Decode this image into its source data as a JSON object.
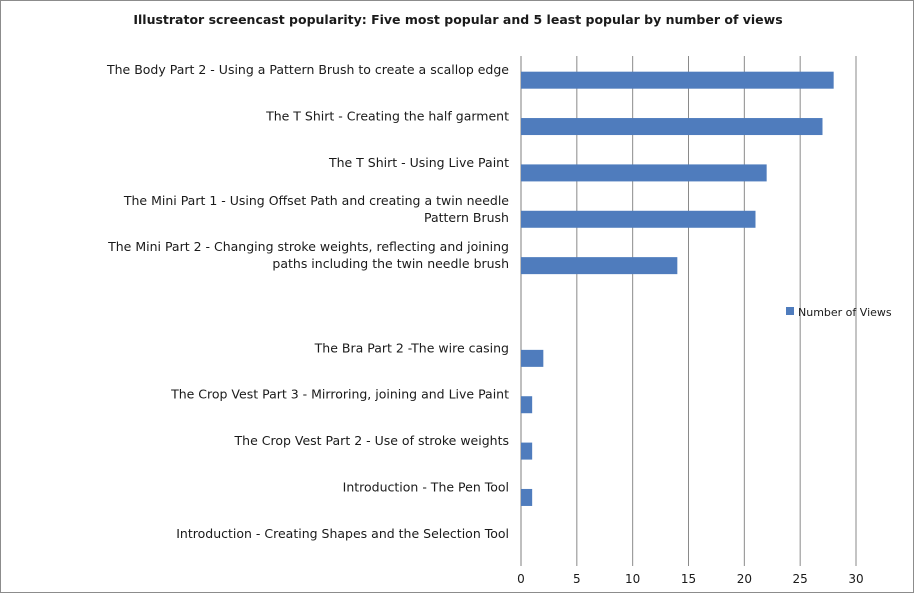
{
  "chart_data": {
    "type": "bar",
    "orientation": "horizontal",
    "title": "Illustrator screencast popularity:  Five most popular and 5 least popular by number of views",
    "categories": [
      [
        "The Body Part 2 - Using a Pattern Brush to create a scallop edge"
      ],
      [
        "The T Shirt - Creating the half garment"
      ],
      [
        "The T Shirt - Using Live Paint"
      ],
      [
        "The Mini Part 1 - Using Offset Path and creating a twin needle",
        "Pattern Brush"
      ],
      [
        "The Mini Part 2 - Changing stroke weights, reflecting and joining",
        "paths including the twin needle brush"
      ],
      [
        ""
      ],
      [
        "The Bra Part 2 -The wire casing"
      ],
      [
        "The Crop Vest Part 3 - Mirroring, joining and Live Paint"
      ],
      [
        "The Crop Vest Part 2 - Use of stroke weights"
      ],
      [
        "Introduction - The Pen Tool"
      ],
      [
        "Introduction - Creating Shapes and the Selection Tool"
      ]
    ],
    "series": [
      {
        "name": "Number of Views",
        "values": [
          28,
          27,
          22,
          21,
          14,
          null,
          2,
          1,
          1,
          1,
          0
        ]
      }
    ],
    "xlim": [
      0,
      30
    ],
    "xticks": [
      0,
      5,
      10,
      15,
      20,
      25,
      30
    ],
    "grid": "vertical major gridlines",
    "legend_position": "right",
    "bar_color": "#4f7cbd"
  }
}
